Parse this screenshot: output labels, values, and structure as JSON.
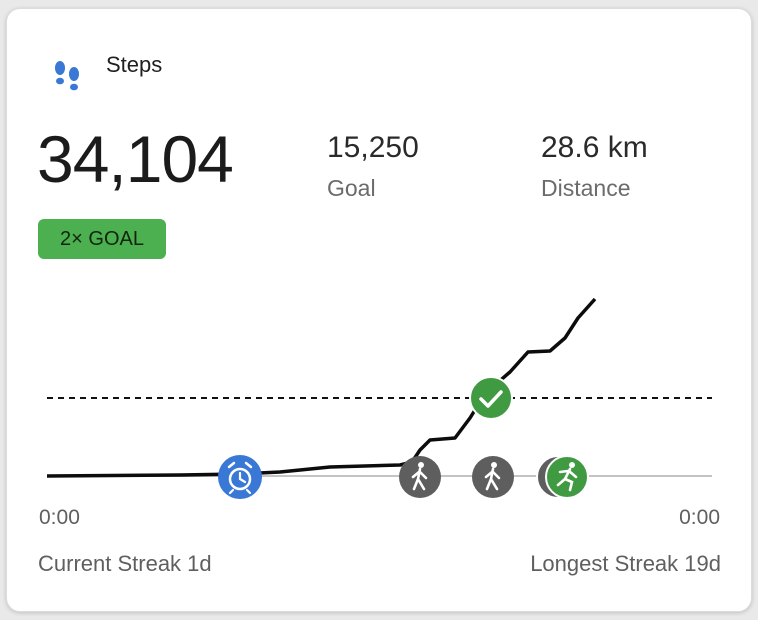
{
  "card": {
    "title": "Steps",
    "icon": "footprints-icon",
    "steps": "34,104",
    "goal_value": "15,250",
    "goal_label": "Goal",
    "distance_value": "28.6 km",
    "distance_label": "Distance",
    "badge": "2× GOAL"
  },
  "timeline": {
    "start_label": "0:00",
    "end_label": "0:00",
    "markers": [
      "alarm-clock-icon",
      "walking-icon",
      "walking-icon",
      "running-icon",
      "goal-check-icon"
    ]
  },
  "streaks": {
    "current": "Current Streak 1d",
    "longest": "Longest Streak 19d"
  },
  "colors": {
    "accent_blue": "#3a78d6",
    "goal_green": "#4caf50",
    "activity_gray": "#5e5e5e",
    "run_green": "#3f9a41"
  }
}
